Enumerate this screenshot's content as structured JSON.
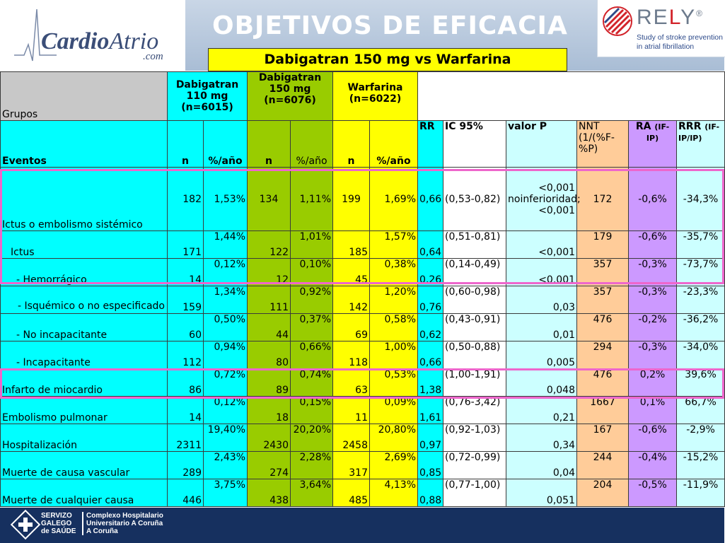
{
  "header": {
    "title": "OBJETIVOS DE EFICACIA",
    "subtitle": "Dabigatran 150 mg vs Warfarina",
    "logo_left": {
      "main": "Cardio",
      "italic": "Atrio",
      "suffix": ".com"
    },
    "logo_right": {
      "pre": "RE",
      "mid": "L",
      "post": "Y",
      "reg": "®",
      "line1": "Study of stroke prevention",
      "line2": "in atrial fibrillation"
    }
  },
  "table": {
    "groups_label": "Grupos",
    "group_dab110": [
      "Dabigatran",
      "110 mg",
      "(n=6015)"
    ],
    "group_dab150": [
      "Dabigatran",
      "150 mg",
      "(n=6076)"
    ],
    "group_warf": [
      "Warfarina",
      "(n=6022)"
    ],
    "events_label": "Eventos",
    "col_n": "n",
    "col_pct": "%/año",
    "col_rr": "RR",
    "col_ic": "IC 95%",
    "col_p": "valor P",
    "col_nnt": "NNT (1/(%F-%P)",
    "col_ra": "RA",
    "col_ra_sup": "(IF-IP)",
    "col_rrr": "RRR",
    "col_rrr_sup": "(IF-IP/IP)",
    "rows": [
      {
        "event": "Ictus o embolismo sistémico",
        "n110": "182",
        "p110": "1,53%",
        "n150": "134",
        "p150": "1,11%",
        "nw": "199",
        "pw": "1,69%",
        "rr": "0,66",
        "ic": "(0,53-0,82)",
        "p": "<0,001 noinferioridad; <0,001",
        "nnt": "172",
        "ra": "-0,6%",
        "rrr": "-34,3%"
      },
      {
        "event": "Ictus",
        "n110": "171",
        "p110": "1,44%",
        "n150": "122",
        "p150": "1,01%",
        "nw": "185",
        "pw": "1,57%",
        "rr": "0,64",
        "ic": "(0,51-0,81)",
        "p": "<0,001",
        "nnt": "179",
        "ra": "-0,6%",
        "rrr": "-35,7%"
      },
      {
        "event": "- Hemorrágico",
        "n110": "14",
        "p110": "0,12%",
        "n150": "12",
        "p150": "0,10%",
        "nw": "45",
        "pw": "0,38%",
        "rr": "0,26",
        "ic": "(0,14-0,49)",
        "p": "<0,001",
        "nnt": "357",
        "ra": "-0,3%",
        "rrr": "-73,7%"
      },
      {
        "event": "- Isquémico o no especificado",
        "n110": "159",
        "p110": "1,34%",
        "n150": "111",
        "p150": "0,92%",
        "nw": "142",
        "pw": "1,20%",
        "rr": "0,76",
        "ic": "(0,60-0,98)",
        "p": "0,03",
        "nnt": "357",
        "ra": "-0,3%",
        "rrr": "-23,3%"
      },
      {
        "event": "- No incapacitante",
        "n110": "60",
        "p110": "0,50%",
        "n150": "44",
        "p150": "0,37%",
        "nw": "69",
        "pw": "0,58%",
        "rr": "0,62",
        "ic": "(0,43-0,91)",
        "p": "0,01",
        "nnt": "476",
        "ra": "-0,2%",
        "rrr": "-36,2%"
      },
      {
        "event": "- Incapacitante",
        "n110": "112",
        "p110": "0,94%",
        "n150": "80",
        "p150": "0,66%",
        "nw": "118",
        "pw": "1,00%",
        "rr": "0,66",
        "ic": "(0,50-0,88)",
        "p": "0,005",
        "nnt": "294",
        "ra": "-0,3%",
        "rrr": "-34,0%"
      },
      {
        "event": "Infarto de miocardio",
        "n110": "86",
        "p110": "0,72%",
        "n150": "89",
        "p150": "0,74%",
        "nw": "63",
        "pw": "0,53%",
        "rr": "1,38",
        "ic": "(1,00-1,91)",
        "p": "0,048",
        "nnt": "476",
        "ra": "0,2%",
        "rrr": "39,6%"
      },
      {
        "event": "Embolismo pulmonar",
        "n110": "14",
        "p110": "0,12%",
        "n150": "18",
        "p150": "0,15%",
        "nw": "11",
        "pw": "0,09%",
        "rr": "1,61",
        "ic": "(0,76-3,42)",
        "p": "0,21",
        "nnt": "1667",
        "ra": "0,1%",
        "rrr": "66,7%"
      },
      {
        "event": "Hospitalización",
        "n110": "2311",
        "p110": "19,40%",
        "n150": "2430",
        "p150": "20,20%",
        "nw": "2458",
        "pw": "20,80%",
        "rr": "0,97",
        "ic": "(0,92-1,03)",
        "p": "0,34",
        "nnt": "167",
        "ra": "-0,6%",
        "rrr": "-2,9%"
      },
      {
        "event": "Muerte de causa vascular",
        "n110": "289",
        "p110": "2,43%",
        "n150": "274",
        "p150": "2,28%",
        "nw": "317",
        "pw": "2,69%",
        "rr": "0,85",
        "ic": "(0,72-0,99)",
        "p": "0,04",
        "nnt": "244",
        "ra": "-0,4%",
        "rrr": "-15,2%"
      },
      {
        "event": "Muerte de cualquier causa",
        "n110": "446",
        "p110": "3,75%",
        "n150": "438",
        "p150": "3,64%",
        "nw": "485",
        "pw": "4,13%",
        "rr": "0,88",
        "ic": "(0,77-1,00)",
        "p": "0,051",
        "nnt": "204",
        "ra": "-0,5%",
        "rrr": "-11,9%"
      }
    ]
  },
  "footer": {
    "sergas": [
      "SERVIZO",
      "GALEGO",
      "de SAÚDE"
    ],
    "hospital": [
      "Complexo Hospitalario",
      "Universitario A Coruña",
      "A Coruña"
    ]
  },
  "colors": {
    "band": "#a9bdd5",
    "cyan": "#00ffff",
    "light_cyan": "#ccffff",
    "green": "#99cc00",
    "yellow": "#ffff00",
    "peach": "#ffcc99",
    "purple": "#cc99ff",
    "highlight": "#ee66cc",
    "footer": "#16305f"
  }
}
